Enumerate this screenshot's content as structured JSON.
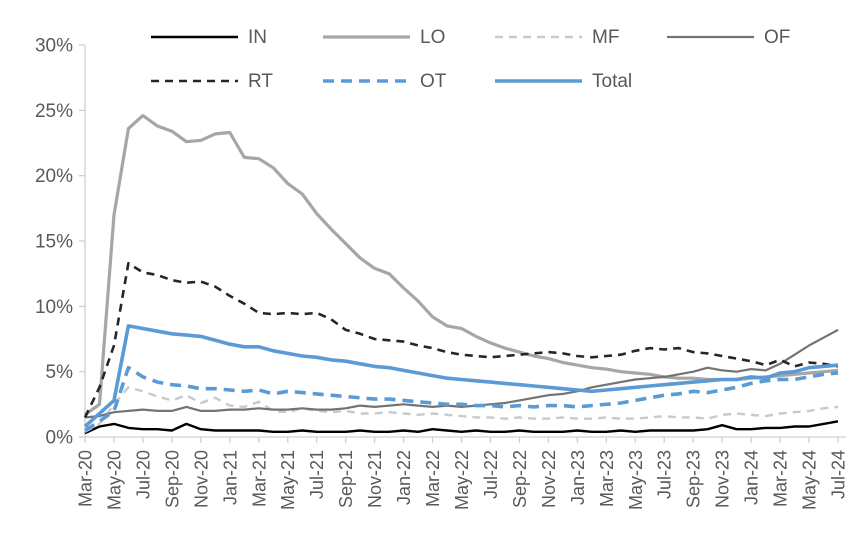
{
  "chart_data": {
    "type": "line",
    "title": "",
    "xlabel": "",
    "ylabel": "",
    "ylim": [
      0,
      30
    ],
    "yticks": [
      0,
      5,
      10,
      15,
      20,
      25,
      30
    ],
    "ytick_labels": [
      "0%",
      "5%",
      "10%",
      "15%",
      "20%",
      "25%",
      "30%"
    ],
    "x_tick_every": 2,
    "grid": false,
    "legend_position": "top",
    "axis_color": "#d0d0d0",
    "label_color": "#595959",
    "accent_blue": "#5b9bd5",
    "x": [
      "Mar-20",
      "Apr-20",
      "May-20",
      "Jun-20",
      "Jul-20",
      "Aug-20",
      "Sep-20",
      "Oct-20",
      "Nov-20",
      "Dec-20",
      "Jan-21",
      "Feb-21",
      "Mar-21",
      "Apr-21",
      "May-21",
      "Jun-21",
      "Jul-21",
      "Aug-21",
      "Sep-21",
      "Oct-21",
      "Nov-21",
      "Dec-21",
      "Jan-22",
      "Feb-22",
      "Mar-22",
      "Apr-22",
      "May-22",
      "Jun-22",
      "Jul-22",
      "Aug-22",
      "Sep-22",
      "Oct-22",
      "Nov-22",
      "Dec-22",
      "Jan-23",
      "Feb-23",
      "Mar-23",
      "Apr-23",
      "May-23",
      "Jun-23",
      "Jul-23",
      "Aug-23",
      "Sep-23",
      "Oct-23",
      "Nov-23",
      "Dec-23",
      "Jan-24",
      "Feb-24",
      "Mar-24",
      "Apr-24",
      "May-24",
      "Jun-24",
      "Jul-24"
    ],
    "x_tick_labels_shown": [
      "Mar-20",
      "May-20",
      "Jul-20",
      "Sep-20",
      "Nov-20",
      "Jan-21",
      "Mar-21",
      "May-21",
      "Jul-21",
      "Sep-21",
      "Nov-21",
      "Jan-22",
      "Mar-22",
      "May-22",
      "Jul-22",
      "Sep-22",
      "Nov-22",
      "Jan-23",
      "Mar-23",
      "May-23",
      "Jul-23",
      "Sep-23",
      "Nov-23",
      "Jan-24",
      "Mar-24",
      "May-24",
      "Jul-24"
    ],
    "series": [
      {
        "name": "IN",
        "color": "#000000",
        "style": "solid",
        "width": 2.4,
        "values": [
          0.3,
          0.8,
          1.0,
          0.7,
          0.6,
          0.6,
          0.5,
          1.0,
          0.6,
          0.5,
          0.5,
          0.5,
          0.5,
          0.4,
          0.4,
          0.5,
          0.4,
          0.4,
          0.4,
          0.5,
          0.4,
          0.4,
          0.5,
          0.4,
          0.6,
          0.5,
          0.4,
          0.5,
          0.4,
          0.4,
          0.5,
          0.4,
          0.4,
          0.4,
          0.5,
          0.4,
          0.4,
          0.5,
          0.4,
          0.5,
          0.5,
          0.5,
          0.5,
          0.6,
          0.9,
          0.6,
          0.6,
          0.7,
          0.7,
          0.8,
          0.8,
          1.0,
          1.2
        ]
      },
      {
        "name": "LO",
        "color": "#a6a6a6",
        "style": "solid",
        "width": 3.2,
        "values": [
          1.7,
          2.5,
          17.0,
          23.6,
          24.6,
          23.8,
          23.4,
          22.6,
          22.7,
          23.2,
          23.3,
          21.4,
          21.3,
          20.6,
          19.4,
          18.6,
          17.1,
          15.9,
          14.8,
          13.7,
          12.9,
          12.5,
          11.4,
          10.4,
          9.2,
          8.5,
          8.3,
          7.7,
          7.2,
          6.8,
          6.5,
          6.2,
          6.0,
          5.7,
          5.5,
          5.3,
          5.2,
          5.0,
          4.9,
          4.8,
          4.6,
          4.5,
          4.5,
          4.4,
          4.4,
          4.4,
          4.5,
          4.6,
          4.7,
          4.8,
          4.9,
          5.0,
          5.1
        ]
      },
      {
        "name": "MF",
        "color": "#c9c9c9",
        "style": "dashed",
        "width": 2.4,
        "values": [
          0.4,
          1.0,
          2.5,
          3.8,
          3.5,
          3.1,
          2.8,
          3.2,
          2.6,
          3.0,
          2.4,
          2.3,
          2.7,
          2.0,
          1.9,
          2.2,
          2.0,
          1.9,
          2.0,
          1.8,
          1.8,
          1.9,
          1.8,
          1.7,
          1.8,
          1.7,
          1.6,
          1.5,
          1.5,
          1.4,
          1.5,
          1.4,
          1.4,
          1.5,
          1.4,
          1.4,
          1.5,
          1.4,
          1.4,
          1.5,
          1.6,
          1.5,
          1.5,
          1.4,
          1.7,
          1.8,
          1.7,
          1.6,
          1.8,
          1.9,
          2.0,
          2.2,
          2.3
        ]
      },
      {
        "name": "OF",
        "color": "#737373",
        "style": "solid",
        "width": 2.2,
        "values": [
          1.5,
          1.6,
          1.9,
          2.0,
          2.1,
          2.0,
          2.0,
          2.3,
          2.0,
          2.0,
          2.1,
          2.1,
          2.2,
          2.1,
          2.1,
          2.2,
          2.1,
          2.1,
          2.2,
          2.4,
          2.3,
          2.4,
          2.5,
          2.4,
          2.3,
          2.4,
          2.3,
          2.4,
          2.5,
          2.6,
          2.8,
          3.0,
          3.2,
          3.3,
          3.5,
          3.8,
          4.0,
          4.2,
          4.4,
          4.5,
          4.6,
          4.8,
          5.0,
          5.3,
          5.1,
          5.0,
          5.2,
          5.1,
          5.6,
          6.3,
          7.0,
          7.6,
          8.2
        ]
      },
      {
        "name": "RT",
        "color": "#262626",
        "style": "dashed",
        "width": 2.6,
        "values": [
          1.5,
          3.8,
          7.0,
          13.3,
          12.6,
          12.4,
          12.0,
          11.8,
          11.9,
          11.5,
          10.8,
          10.2,
          9.5,
          9.4,
          9.5,
          9.4,
          9.5,
          9.0,
          8.2,
          7.9,
          7.5,
          7.4,
          7.3,
          7.0,
          6.8,
          6.5,
          6.3,
          6.2,
          6.1,
          6.2,
          6.3,
          6.4,
          6.5,
          6.4,
          6.2,
          6.1,
          6.2,
          6.3,
          6.6,
          6.8,
          6.7,
          6.8,
          6.5,
          6.4,
          6.2,
          6.0,
          5.8,
          5.5,
          5.9,
          5.4,
          5.7,
          5.6,
          5.4
        ]
      },
      {
        "name": "OT",
        "color": "#5b9bd5",
        "style": "dashed",
        "width": 3.6,
        "values": [
          0.5,
          1.2,
          2.0,
          5.3,
          4.6,
          4.2,
          4.0,
          3.9,
          3.7,
          3.7,
          3.6,
          3.5,
          3.6,
          3.3,
          3.5,
          3.4,
          3.3,
          3.2,
          3.1,
          3.0,
          2.9,
          2.9,
          2.8,
          2.7,
          2.6,
          2.5,
          2.5,
          2.4,
          2.4,
          2.3,
          2.4,
          2.3,
          2.4,
          2.4,
          2.3,
          2.4,
          2.5,
          2.6,
          2.8,
          3.0,
          3.2,
          3.3,
          3.5,
          3.4,
          3.6,
          3.8,
          4.1,
          4.3,
          4.4,
          4.4,
          4.6,
          4.8,
          4.9
        ]
      },
      {
        "name": "Total",
        "color": "#5b9bd5",
        "style": "solid",
        "width": 3.6,
        "values": [
          0.8,
          1.8,
          2.8,
          8.5,
          8.3,
          8.1,
          7.9,
          7.8,
          7.7,
          7.4,
          7.1,
          6.9,
          6.9,
          6.6,
          6.4,
          6.2,
          6.1,
          5.9,
          5.8,
          5.6,
          5.4,
          5.3,
          5.1,
          4.9,
          4.7,
          4.5,
          4.4,
          4.3,
          4.2,
          4.1,
          4.0,
          3.9,
          3.8,
          3.7,
          3.6,
          3.5,
          3.6,
          3.7,
          3.8,
          3.9,
          4.0,
          4.1,
          4.2,
          4.3,
          4.4,
          4.4,
          4.6,
          4.5,
          4.9,
          5.0,
          5.3,
          5.4,
          5.5
        ]
      }
    ]
  }
}
